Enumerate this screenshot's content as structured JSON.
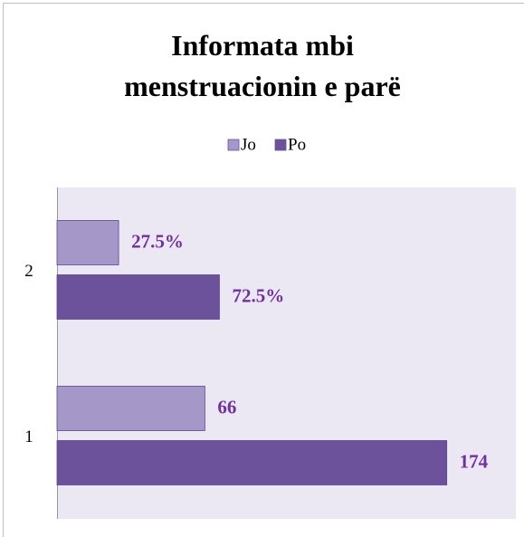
{
  "chart_data": {
    "type": "hbar",
    "title": "Informata mbi menstruacionin e parë",
    "categories": [
      "1",
      "2"
    ],
    "series": [
      {
        "name": "Jo",
        "color": "#a597c8",
        "values": [
          66,
          27.5
        ],
        "value_labels": [
          "66",
          "27.5%"
        ]
      },
      {
        "name": "Po",
        "color": "#6b529b",
        "values": [
          174,
          72.5
        ],
        "value_labels": [
          "174",
          "72.5%"
        ]
      }
    ],
    "xlim": [
      0,
      200
    ],
    "legend": "top"
  }
}
